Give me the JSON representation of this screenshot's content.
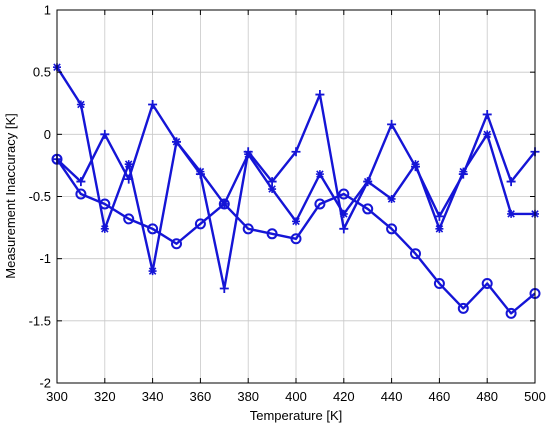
{
  "chart_data": {
    "type": "line",
    "title": "",
    "xlabel": "Temperature [K]",
    "ylabel": "Measurement Inaccuracy [K]",
    "xlim": [
      300,
      500
    ],
    "ylim": [
      -2,
      1
    ],
    "xticks": [
      300,
      320,
      340,
      360,
      380,
      400,
      420,
      440,
      460,
      480,
      500
    ],
    "yticks": [
      1,
      0.5,
      0,
      -0.5,
      -1,
      -1.5,
      -2
    ],
    "ytick_labels": [
      "1",
      "0.5",
      "0",
      "-0.5",
      "-1",
      "-1.5",
      "-2"
    ],
    "grid": true,
    "color": "#1515d6",
    "series": [
      {
        "marker": "circle",
        "x": [
          300,
          310,
          320,
          330,
          340,
          350,
          360,
          370,
          380,
          390,
          400,
          410,
          420,
          430,
          440,
          450,
          460,
          470,
          480,
          490,
          500
        ],
        "values": [
          -0.2,
          -0.48,
          -0.56,
          -0.68,
          -0.76,
          -0.88,
          -0.72,
          -0.56,
          -0.76,
          -0.8,
          -0.84,
          -0.56,
          -0.48,
          -0.6,
          -0.76,
          -0.96,
          -1.2,
          -1.4,
          -1.2,
          -1.44,
          -1.28
        ]
      },
      {
        "marker": "star",
        "x": [
          300,
          310,
          320,
          330,
          340,
          350,
          360,
          370,
          380,
          390,
          400,
          410,
          420,
          430,
          440,
          450,
          460,
          470,
          480,
          490,
          500
        ],
        "values": [
          0.54,
          0.24,
          -0.76,
          -0.24,
          -1.1,
          -0.06,
          -0.3,
          -0.56,
          -0.16,
          -0.44,
          -0.7,
          -0.32,
          -0.64,
          -0.38,
          -0.52,
          -0.24,
          -0.76,
          -0.3,
          0.0,
          -0.64,
          -0.64
        ]
      },
      {
        "marker": "plus",
        "x": [
          300,
          310,
          320,
          330,
          340,
          350,
          360,
          370,
          380,
          390,
          400,
          410,
          420,
          430,
          440,
          450,
          460,
          470,
          480,
          490,
          500
        ],
        "values": [
          -0.2,
          -0.38,
          0.0,
          -0.36,
          0.24,
          -0.06,
          -0.32,
          -1.24,
          -0.14,
          -0.38,
          -0.14,
          0.32,
          -0.76,
          -0.38,
          0.08,
          -0.26,
          -0.66,
          -0.32,
          0.16,
          -0.38,
          -0.14
        ]
      }
    ]
  }
}
